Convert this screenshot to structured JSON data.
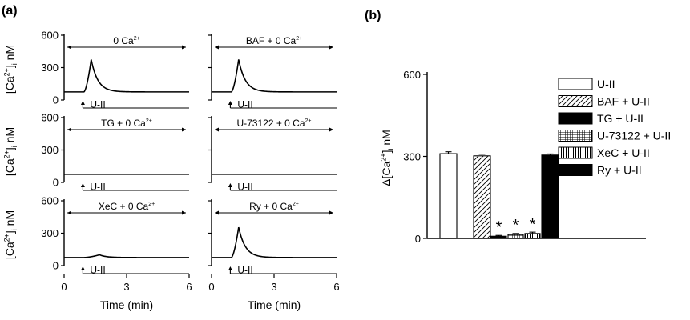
{
  "panel_a": {
    "label": "(a)",
    "ylabel": "[Ca2+]i nM",
    "ylabel_parts": [
      "[Ca",
      "2+",
      "]",
      "i",
      " nM"
    ],
    "xlabel": "Time (min)",
    "y_ticks": [
      "0",
      "300",
      "600"
    ],
    "x_ticks": [
      "0",
      "3",
      "6"
    ],
    "stimulus_label": "U-II",
    "baseline_nM": 75,
    "stimulus_onset_min": 0.9,
    "stimulus_end_min": 6
  },
  "panel_b": {
    "label": "(b)",
    "ylabel": "Δ[Ca2+]i nM",
    "ylabel_parts": [
      "Δ[Ca",
      "2+",
      "]",
      "i",
      " nM"
    ],
    "y_ticks": [
      "0",
      "300",
      "600"
    ]
  },
  "chart_data": [
    {
      "type": "line",
      "panel": "a",
      "xlabel": "Time (min)",
      "ylabel": "[Ca2+]i nM",
      "xlim": [
        0,
        6
      ],
      "ylim": [
        0,
        600
      ],
      "traces": [
        {
          "condition": "0 Ca2+",
          "cond_parts": [
            "0 Ca",
            "2+",
            ""
          ],
          "baseline": 75,
          "peak": 375,
          "peak_time_min": 1.3,
          "show_x_ticks": false
        },
        {
          "condition": "BAF + 0 Ca2+",
          "cond_parts": [
            "BAF + 0 Ca",
            "2+",
            ""
          ],
          "baseline": 75,
          "peak": 375,
          "peak_time_min": 1.3,
          "show_x_ticks": false
        },
        {
          "condition": "TG + 0 Ca2+",
          "cond_parts": [
            "TG + 0 Ca",
            "2+",
            ""
          ],
          "baseline": 75,
          "peak": 75,
          "peak_time_min": 1.3,
          "show_x_ticks": false
        },
        {
          "condition": "U-73122 + 0 Ca2+",
          "cond_parts": [
            "U-73122 + 0 Ca",
            "2+",
            ""
          ],
          "baseline": 75,
          "peak": 75,
          "peak_time_min": 1.3,
          "show_x_ticks": false
        },
        {
          "condition": "XeC + 0 Ca2+",
          "cond_parts": [
            "XeC + 0 Ca",
            "2+",
            ""
          ],
          "baseline": 75,
          "peak": 100,
          "peak_time_min": 1.7,
          "show_x_ticks": true
        },
        {
          "condition": "Ry + 0 Ca2+",
          "cond_parts": [
            "Ry + 0 Ca",
            "2+",
            ""
          ],
          "baseline": 75,
          "peak": 355,
          "peak_time_min": 1.3,
          "show_x_ticks": true
        }
      ]
    },
    {
      "type": "bar",
      "panel": "b",
      "ylabel": "Δ[Ca2+]i nM",
      "ylim": [
        0,
        600
      ],
      "categories": [
        "U-II",
        "BAF + U-II",
        "TG + U-II",
        "U-73122 + U-II",
        "XeC + U-II",
        "Ry + U-II"
      ],
      "values": [
        310,
        302,
        8,
        14,
        18,
        305
      ],
      "errors": [
        7,
        6,
        3,
        4,
        5,
        4
      ],
      "significant": [
        false,
        false,
        true,
        true,
        true,
        false
      ],
      "significance_marker": "*",
      "patterns": [
        "open",
        "hatched",
        "solid",
        "grid",
        "vertical-lines",
        "solid"
      ],
      "legend_placement": "right"
    }
  ]
}
